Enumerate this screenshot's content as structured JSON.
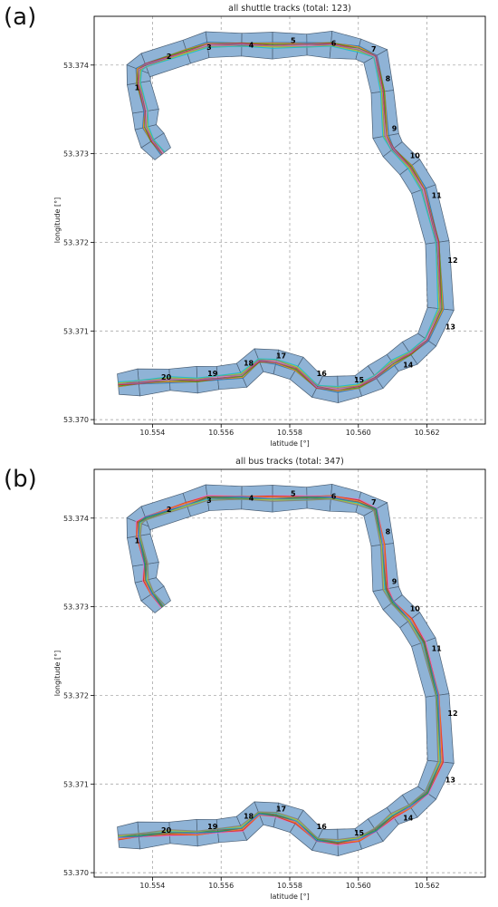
{
  "figure": {
    "panels": [
      {
        "letter": "(a)"
      },
      {
        "letter": "(b)"
      }
    ]
  },
  "chart_data": [
    {
      "type": "scatter",
      "title": "all shuttle tracks (total: 123)",
      "xlabel": "latitude [°]",
      "ylabel": "longitude [°]",
      "xlim": [
        10.5523,
        10.5637
      ],
      "ylim": [
        53.36995,
        53.37455
      ],
      "xticks": [
        10.554,
        10.556,
        10.558,
        10.56,
        10.562
      ],
      "xtick_labels": [
        "10.554",
        "10.556",
        "10.558",
        "10.560",
        "10.562"
      ],
      "yticks": [
        53.37,
        53.371,
        53.372,
        53.373,
        53.374
      ],
      "ytick_labels": [
        "53.370",
        "53.371",
        "53.372",
        "53.373",
        "53.374"
      ],
      "grid": true,
      "segment_fill": "#8fb3d6",
      "segment_stroke": "#4a5f75",
      "track_colors": [
        "#1f77b4",
        "#ff7f0e",
        "#2ca02c",
        "#d62728",
        "#9467bd",
        "#8c564b",
        "#e377c2",
        "#7f7f7f",
        "#bcbd22",
        "#17becf"
      ],
      "route_centerline": [
        [
          10.5543,
          53.373
        ],
        [
          10.554,
          53.37315
        ],
        [
          10.5538,
          53.3733
        ],
        [
          10.5538,
          53.37348
        ],
        [
          10.5536,
          53.3738
        ],
        [
          10.5536,
          53.37395
        ],
        [
          10.5538,
          53.374
        ],
        [
          10.555,
          53.37415
        ],
        [
          10.5556,
          53.37423
        ],
        [
          10.5566,
          53.37423
        ],
        [
          10.5575,
          53.37422
        ],
        [
          10.5585,
          53.37423
        ],
        [
          10.5592,
          53.37423
        ],
        [
          10.56,
          53.37418
        ],
        [
          10.5605,
          53.3741
        ],
        [
          10.5607,
          53.3737
        ],
        [
          10.5608,
          53.3732
        ],
        [
          10.561,
          53.37305
        ],
        [
          10.5615,
          53.37285
        ],
        [
          10.5619,
          53.3726
        ],
        [
          10.5623,
          53.372
        ],
        [
          10.5624,
          53.37125
        ],
        [
          10.562,
          53.3709
        ],
        [
          10.5615,
          53.37075
        ],
        [
          10.561,
          53.37064
        ],
        [
          10.5605,
          53.37048
        ],
        [
          10.56,
          53.37038
        ],
        [
          10.5594,
          53.37034
        ],
        [
          10.5588,
          53.37037
        ],
        [
          10.5582,
          53.37058
        ],
        [
          10.5576,
          53.37065
        ],
        [
          10.5571,
          53.37067
        ],
        [
          10.5566,
          53.3705
        ],
        [
          10.5559,
          53.37047
        ],
        [
          10.5553,
          53.37045
        ],
        [
          10.5545,
          53.37045
        ],
        [
          10.5536,
          53.37042
        ],
        [
          10.553,
          53.3704
        ]
      ],
      "segment_labels": [
        {
          "label": "1",
          "x": 10.55355,
          "y": 53.37375
        },
        {
          "label": "2",
          "x": 10.55448,
          "y": 53.3741
        },
        {
          "label": "3",
          "x": 10.55565,
          "y": 53.3742
        },
        {
          "label": "4",
          "x": 10.55688,
          "y": 53.37423
        },
        {
          "label": "5",
          "x": 10.5581,
          "y": 53.37428
        },
        {
          "label": "6",
          "x": 10.55928,
          "y": 53.37425
        },
        {
          "label": "7",
          "x": 10.56045,
          "y": 53.37418
        },
        {
          "label": "8",
          "x": 10.56086,
          "y": 53.37385
        },
        {
          "label": "9",
          "x": 10.56105,
          "y": 53.37329
        },
        {
          "label": "10",
          "x": 10.56165,
          "y": 53.37298
        },
        {
          "label": "11",
          "x": 10.56228,
          "y": 53.37253
        },
        {
          "label": "12",
          "x": 10.56275,
          "y": 53.3718
        },
        {
          "label": "13",
          "x": 10.56268,
          "y": 53.37105
        },
        {
          "label": "14",
          "x": 10.56145,
          "y": 53.37062
        },
        {
          "label": "15",
          "x": 10.56002,
          "y": 53.37045
        },
        {
          "label": "16",
          "x": 10.55893,
          "y": 53.37052
        },
        {
          "label": "17",
          "x": 10.55775,
          "y": 53.37072
        },
        {
          "label": "18",
          "x": 10.5568,
          "y": 53.37064
        },
        {
          "label": "19",
          "x": 10.55575,
          "y": 53.37052
        },
        {
          "label": "20",
          "x": 10.5544,
          "y": 53.37048
        }
      ]
    },
    {
      "type": "scatter",
      "title": "all bus tracks (total: 347)",
      "xlabel": "latitude [°]",
      "ylabel": "longitude [°]",
      "xlim": [
        10.5523,
        10.5637
      ],
      "ylim": [
        53.36995,
        53.37455
      ],
      "xticks": [
        10.554,
        10.556,
        10.558,
        10.56,
        10.562
      ],
      "xtick_labels": [
        "10.554",
        "10.556",
        "10.558",
        "10.560",
        "10.562"
      ],
      "yticks": [
        53.37,
        53.371,
        53.372,
        53.373,
        53.374
      ],
      "ytick_labels": [
        "53.370",
        "53.371",
        "53.372",
        "53.373",
        "53.374"
      ],
      "grid": true,
      "segment_fill": "#8fb3d6",
      "segment_stroke": "#4a5f75",
      "track_colors": [
        "#e377c2",
        "#d62728",
        "#ff7f0e",
        "#9467bd",
        "#1f77b4",
        "#2ca02c",
        "#8c564b",
        "#17becf",
        "#bcbd22",
        "#7f7f7f"
      ],
      "route_centerline": [
        [
          10.5543,
          53.373
        ],
        [
          10.554,
          53.37315
        ],
        [
          10.5538,
          53.3733
        ],
        [
          10.5538,
          53.37348
        ],
        [
          10.5536,
          53.3738
        ],
        [
          10.5536,
          53.37395
        ],
        [
          10.5538,
          53.374
        ],
        [
          10.555,
          53.37415
        ],
        [
          10.5556,
          53.37423
        ],
        [
          10.5566,
          53.37423
        ],
        [
          10.5575,
          53.37422
        ],
        [
          10.5585,
          53.37423
        ],
        [
          10.5592,
          53.37423
        ],
        [
          10.56,
          53.37418
        ],
        [
          10.5605,
          53.3741
        ],
        [
          10.5607,
          53.3737
        ],
        [
          10.5608,
          53.3732
        ],
        [
          10.561,
          53.37305
        ],
        [
          10.5615,
          53.37285
        ],
        [
          10.5619,
          53.3726
        ],
        [
          10.5623,
          53.372
        ],
        [
          10.5624,
          53.37125
        ],
        [
          10.562,
          53.3709
        ],
        [
          10.5615,
          53.37075
        ],
        [
          10.561,
          53.37064
        ],
        [
          10.5605,
          53.37048
        ],
        [
          10.56,
          53.37038
        ],
        [
          10.5594,
          53.37034
        ],
        [
          10.5588,
          53.37037
        ],
        [
          10.5582,
          53.37058
        ],
        [
          10.5576,
          53.37065
        ],
        [
          10.5571,
          53.37067
        ],
        [
          10.5566,
          53.3705
        ],
        [
          10.5559,
          53.37047
        ],
        [
          10.5553,
          53.37045
        ],
        [
          10.5545,
          53.37045
        ],
        [
          10.5536,
          53.37042
        ],
        [
          10.553,
          53.3704
        ]
      ],
      "segment_labels": [
        {
          "label": "1",
          "x": 10.55355,
          "y": 53.37375
        },
        {
          "label": "2",
          "x": 10.55448,
          "y": 53.3741
        },
        {
          "label": "3",
          "x": 10.55565,
          "y": 53.3742
        },
        {
          "label": "4",
          "x": 10.55688,
          "y": 53.37423
        },
        {
          "label": "5",
          "x": 10.5581,
          "y": 53.37428
        },
        {
          "label": "6",
          "x": 10.55928,
          "y": 53.37425
        },
        {
          "label": "7",
          "x": 10.56045,
          "y": 53.37418
        },
        {
          "label": "8",
          "x": 10.56086,
          "y": 53.37385
        },
        {
          "label": "9",
          "x": 10.56105,
          "y": 53.37329
        },
        {
          "label": "10",
          "x": 10.56165,
          "y": 53.37298
        },
        {
          "label": "11",
          "x": 10.56228,
          "y": 53.37253
        },
        {
          "label": "12",
          "x": 10.56275,
          "y": 53.3718
        },
        {
          "label": "13",
          "x": 10.56268,
          "y": 53.37105
        },
        {
          "label": "14",
          "x": 10.56145,
          "y": 53.37062
        },
        {
          "label": "15",
          "x": 10.56002,
          "y": 53.37045
        },
        {
          "label": "16",
          "x": 10.55893,
          "y": 53.37052
        },
        {
          "label": "17",
          "x": 10.55775,
          "y": 53.37072
        },
        {
          "label": "18",
          "x": 10.5568,
          "y": 53.37064
        },
        {
          "label": "19",
          "x": 10.55575,
          "y": 53.37052
        },
        {
          "label": "20",
          "x": 10.5544,
          "y": 53.37048
        }
      ]
    }
  ]
}
